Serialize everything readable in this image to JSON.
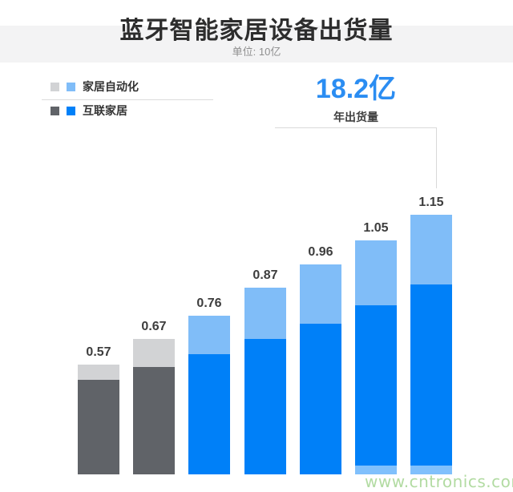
{
  "header": {
    "title": "蓝牙智能家居设备出货量",
    "subtitle": "单位: 10亿"
  },
  "legend": [
    {
      "label": "家居自动化",
      "swatches": [
        "gray_light",
        "blue_light"
      ]
    },
    {
      "label": "互联家居",
      "swatches": [
        "gray_dark",
        "blue_dark"
      ]
    }
  ],
  "callout": {
    "value": "18.2亿",
    "caption": "年出货量"
  },
  "watermark": "www.cntronics.com",
  "colors": {
    "gray_light": "#d2d3d5",
    "gray_dark": "#606368",
    "blue_light": "#80bdf8",
    "blue_dark": "#0080f8",
    "accent_blue": "#2b8df2",
    "band_gray": "#f3f3f4"
  },
  "chart_data": {
    "type": "bar",
    "stacked": true,
    "title": "蓝牙智能家居设备出货量",
    "unit_label": "单位: 10亿",
    "x_tick_labels_visible": false,
    "y_axis_visible": false,
    "grid": false,
    "legend_position": "top-left",
    "bar_total_labels": [
      "0.57",
      "0.67",
      "0.76",
      "0.87",
      "0.96",
      "1.05",
      "1.15"
    ],
    "totals": [
      0.57,
      0.67,
      0.76,
      0.87,
      0.96,
      1.05,
      1.15
    ],
    "series": [
      {
        "name": "互联家居",
        "position": "bottom",
        "values": [
          0.51,
          0.56,
          0.61,
          0.67,
          0.73,
          0.8,
          0.88
        ]
      },
      {
        "name": "家居自动化",
        "position": "top",
        "values": [
          0.06,
          0.11,
          0.15,
          0.2,
          0.23,
          0.25,
          0.27
        ]
      }
    ],
    "gray_bars_count": 2,
    "y_baseline_value": 0.145,
    "annotation": {
      "value": "18.2亿",
      "caption": "年出货量"
    }
  }
}
